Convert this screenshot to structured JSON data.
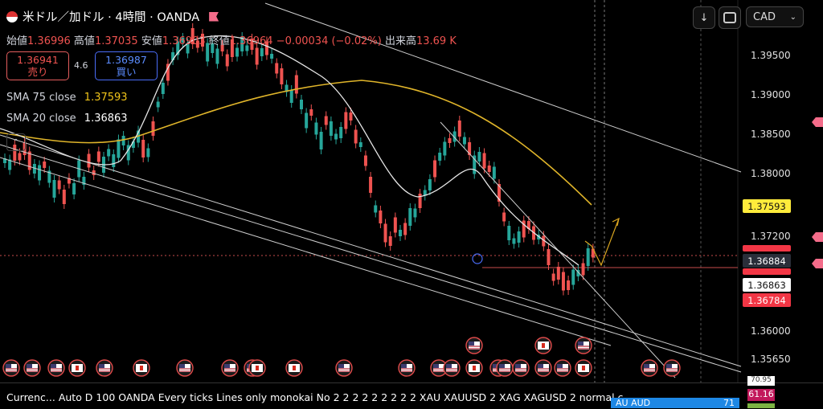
{
  "header": {
    "symbol_title": "米ドル／加ドル · 4時間 · OANDA",
    "ohlc": {
      "open_label": "始値",
      "open": "1.36996",
      "high_label": "高値",
      "high": "1.37035",
      "low_label": "安値",
      "low": "1.36903",
      "close_label": "終値",
      "close": "1.36964",
      "change": "−0.00034 (−0.02%)",
      "volume_label": "出来高",
      "volume": "13.69 K"
    }
  },
  "trade": {
    "sell_price": "1.36941",
    "sell_label": "売り",
    "spread": "4.6",
    "buy_price": "1.36987",
    "buy_label": "買い"
  },
  "indicators": {
    "sma75_label": "SMA 75 close",
    "sma75_value": "1.37593",
    "sma20_label": "SMA 20 close",
    "sma20_value": "1.36863"
  },
  "toolbar": {
    "currency": "CAD"
  },
  "price_axis": {
    "labels": [
      "1.39500",
      "1.39000",
      "1.38500",
      "1.38000",
      "1.37200",
      "1.36000",
      "1.35650"
    ],
    "tags": {
      "sma75": "1.37593",
      "last": "1.36884",
      "sma20": "1.36863",
      "red": "1.36784"
    }
  },
  "bottom_bar": {
    "text": "Currenc...  Auto D 100 OANDA Every ticks Lines only monokai No 2 2 2 2 2 2 2 2 2 XAU XAUUSD 2 XAG XAGUSD 2 normal c",
    "right_table": {
      "row_label": "AU AUD",
      "row_value": "71",
      "values": [
        "70.95",
        "61.16"
      ]
    }
  },
  "colors": {
    "bull": "#26a69a",
    "bear": "#ef5350",
    "sma75": "#e0b52a",
    "sma20": "#e6e6e6",
    "sell_border": "#e35d5d",
    "buy_border": "#4a6cf7",
    "tag_red": "#f23645",
    "tag_yellow": "#ffeb3b"
  },
  "event_flags": [
    "us-flag-icon",
    "ca-flag-icon"
  ]
}
